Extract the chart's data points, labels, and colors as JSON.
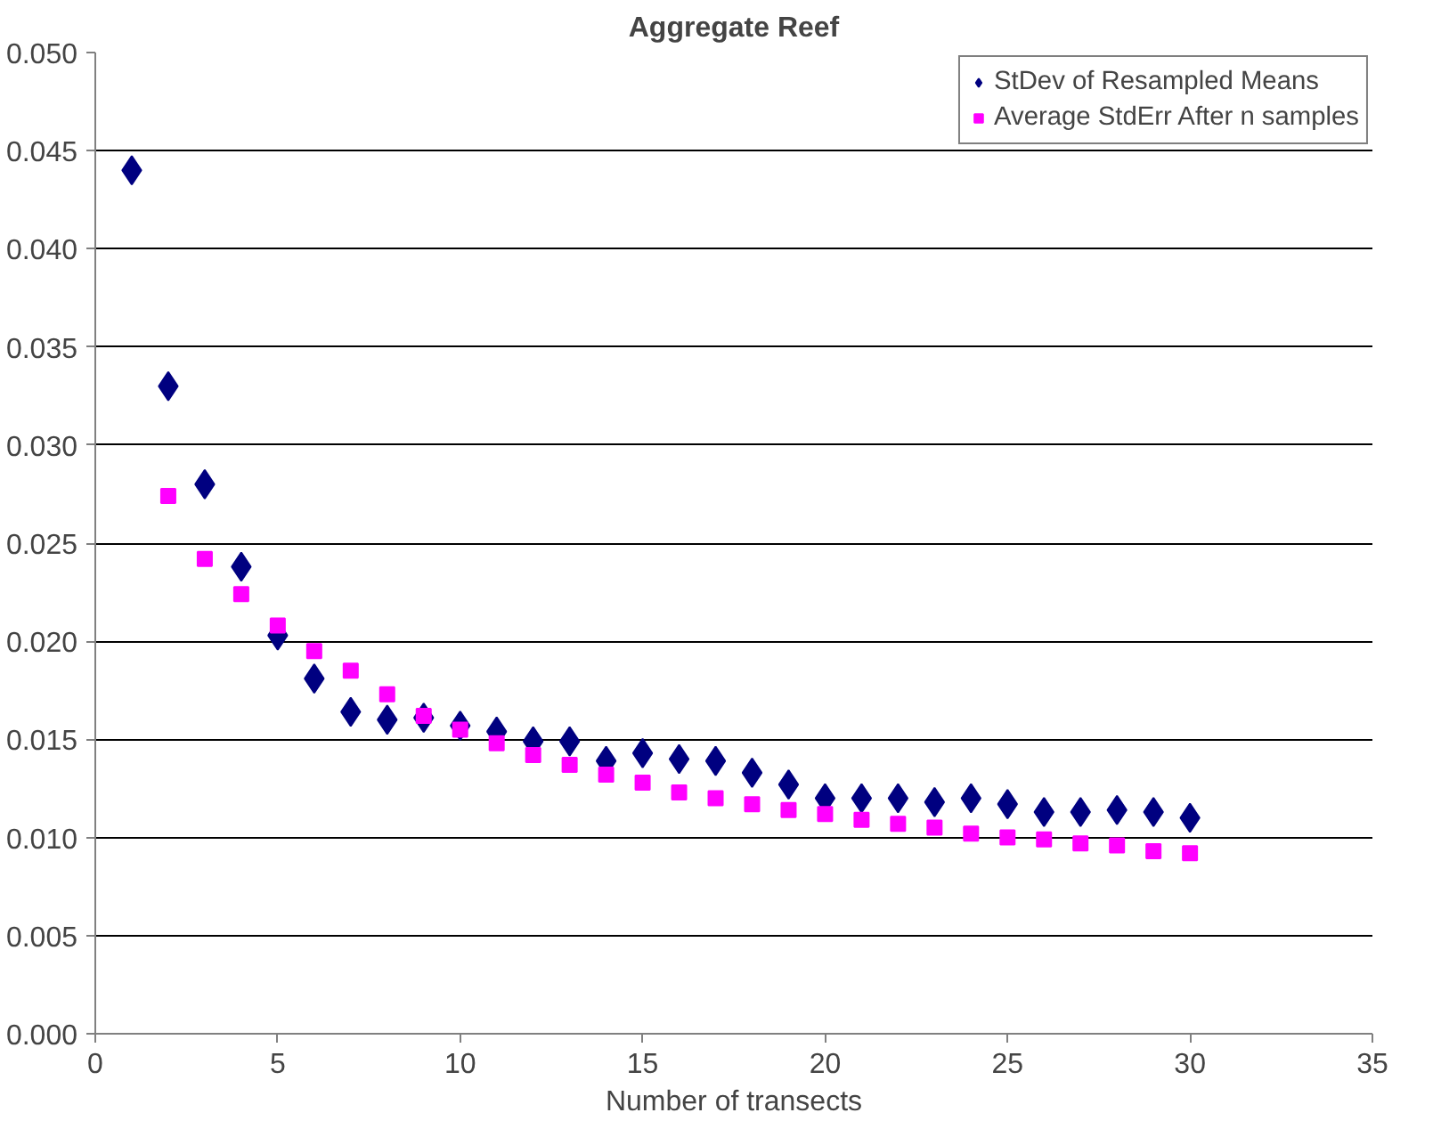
{
  "chart_data": {
    "type": "scatter",
    "title": "Aggregate Reef",
    "xlabel": "Number of transects",
    "x": [
      1,
      2,
      3,
      4,
      5,
      6,
      7,
      8,
      9,
      10,
      11,
      12,
      13,
      14,
      15,
      16,
      17,
      18,
      19,
      20,
      21,
      22,
      23,
      24,
      25,
      26,
      27,
      28,
      29,
      30
    ],
    "series": [
      {
        "name": "StDev of Resampled Means",
        "color": "#000080",
        "marker": "diamond",
        "values": [
          0.044,
          0.033,
          0.028,
          0.0238,
          0.0203,
          0.0181,
          0.0164,
          0.016,
          0.0161,
          0.0157,
          0.0154,
          0.0149,
          0.0149,
          0.0139,
          0.0143,
          0.014,
          0.0139,
          0.0133,
          0.0127,
          0.012,
          0.012,
          0.012,
          0.0118,
          0.012,
          0.0117,
          0.0113,
          0.0113,
          0.0114,
          0.0113,
          0.011
        ]
      },
      {
        "name": "Average StdErr After n samples",
        "color": "#ff00ff",
        "marker": "square",
        "values": [
          null,
          0.0274,
          0.0242,
          0.0224,
          0.0208,
          0.0195,
          0.0185,
          0.0173,
          0.0162,
          0.0155,
          0.0148,
          0.0142,
          0.0137,
          0.0132,
          0.0128,
          0.0123,
          0.012,
          0.0117,
          0.0114,
          0.0112,
          0.0109,
          0.0107,
          0.0105,
          0.0102,
          0.01,
          0.0099,
          0.0097,
          0.0096,
          0.0093,
          0.0092
        ]
      }
    ],
    "xlim": [
      0,
      35
    ],
    "xticks": [
      0,
      5,
      10,
      15,
      20,
      25,
      30,
      35
    ],
    "ylim": [
      0,
      0.05
    ],
    "yticks": [
      {
        "value": 0,
        "label": "0.000"
      },
      {
        "value": 0.005,
        "label": "0.005"
      },
      {
        "value": 0.01,
        "label": "0.010"
      },
      {
        "value": 0.015,
        "label": "0.015"
      },
      {
        "value": 0.02,
        "label": "0.020"
      },
      {
        "value": 0.025,
        "label": "0.025"
      },
      {
        "value": 0.03,
        "label": "0.030"
      },
      {
        "value": 0.035,
        "label": "0.035"
      },
      {
        "value": 0.04,
        "label": "0.040"
      },
      {
        "value": 0.045,
        "label": "0.045"
      },
      {
        "value": 0.05,
        "label": "0.050"
      }
    ],
    "grid": "y",
    "legend": "top right"
  }
}
